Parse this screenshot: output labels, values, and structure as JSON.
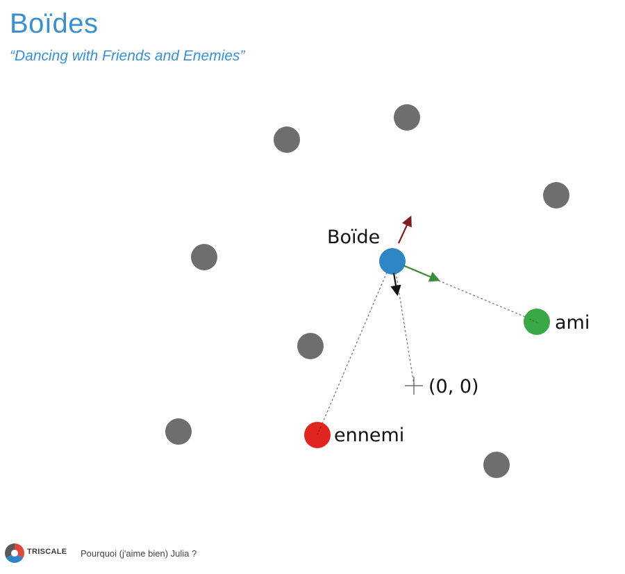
{
  "slide": {
    "title": "Boïdes",
    "subtitle": "“Dancing with Friends and Enemies”"
  },
  "diagram": {
    "labels": {
      "boide": "Boïde",
      "friend": "ami",
      "origin": "(0, 0)",
      "enemy": "ennemi"
    },
    "colors": {
      "boide": "#2f86c4",
      "friend": "#3aa845",
      "enemy": "#e0241f",
      "neighbor": "#6e6e6e",
      "arrow_repulsion": "#7e1d1d",
      "arrow_attraction": "#3d8c3d",
      "arrow_center": "#111111"
    }
  },
  "footer": {
    "logo_text": "TRISCALE",
    "talk_title": "Pourquoi (j'aime bien) Julia ?"
  }
}
